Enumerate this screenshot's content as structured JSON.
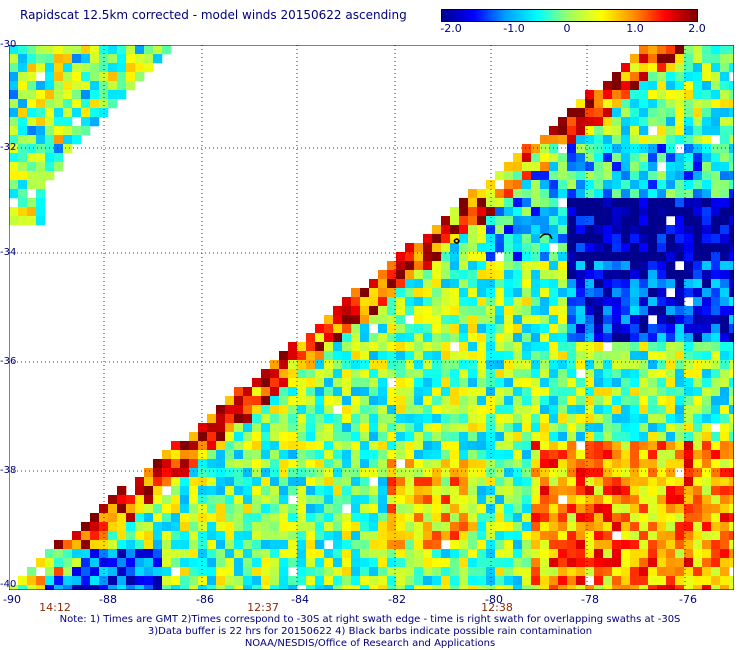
{
  "title": "Rapidscat 12.5km corrected - model winds 20150622 ascending",
  "colorbar": {
    "ticks": [
      "-2.0",
      "-1.0",
      "0",
      "1.0",
      "2.0"
    ],
    "stops": [
      "#00008f",
      "#0000ff",
      "#00a0ff",
      "#00ffff",
      "#a0ff60",
      "#ffff00",
      "#ff9000",
      "#ff0000",
      "#800000"
    ]
  },
  "axes": {
    "lat_labels": [
      "-30",
      "-32",
      "-34",
      "-36",
      "-38",
      "-40"
    ],
    "lon_labels": [
      "-90",
      "-88",
      "-86",
      "-84",
      "-82",
      "-80",
      "-78",
      "-76"
    ]
  },
  "pass_times": [
    "14:12",
    "12:37",
    "12:38"
  ],
  "notes": [
    "Note: 1) Times are GMT 2)Times correspond to -30S at right swath edge - time is right swath for overlapping swaths at -30S",
    "3)Data buffer is 22 hrs for 20150622 4) Black barbs indicate possible rain contamination",
    "NOAA/NESDIS/Office of Research and Applications"
  ]
}
